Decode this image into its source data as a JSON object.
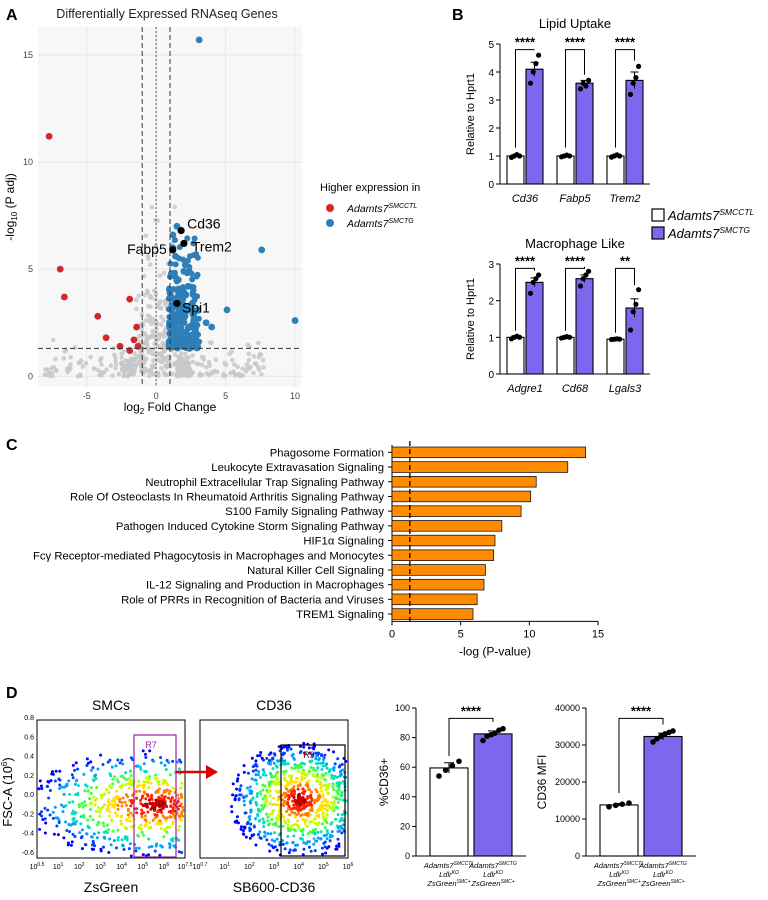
{
  "panels": {
    "a": "A",
    "b": "B",
    "c": "C",
    "d": "D"
  },
  "colors": {
    "red": "#d62728",
    "blue": "#2c7fb8",
    "grey": "#c8c8c8",
    "purple": "#7b68ee",
    "orange": "#ff8c00",
    "black": "#000000"
  },
  "volcano": {
    "title": "Differentially Expressed RNAseq Genes",
    "ylabel_pre": "-log",
    "ylabel_sub": "10",
    "ylabel_post": " (P adj)",
    "xlabel_pre": "log",
    "xlabel_sub": "2",
    "xlabel_post": " Fold Change",
    "legend_title": "Higher expression in",
    "legend_red": "Adamts7",
    "legend_red_sup": "SMCCTL",
    "legend_blue": "Adamts7",
    "legend_blue_sup": "SMCTG",
    "xticks": [
      -5,
      0,
      5,
      10
    ],
    "yticks": [
      0,
      5,
      10,
      15
    ],
    "xlim": [
      -8.5,
      10.5
    ],
    "ylim": [
      -0.5,
      16.3
    ],
    "labels": [
      {
        "name": "Cd36",
        "x": 1.8,
        "y": 6.8
      },
      {
        "name": "Trem2",
        "x": 2.0,
        "y": 6.2
      },
      {
        "name": "Fabp5",
        "x": 1.2,
        "y": 5.9
      },
      {
        "name": "Spi1",
        "x": 1.5,
        "y": 3.4
      }
    ]
  },
  "chart_data": [
    {
      "type": "scatter",
      "title": "Differentially Expressed RNAseq Genes",
      "xlabel": "log2 Fold Change",
      "ylabel": "-log10 (P adj)",
      "xlim": [
        -8.5,
        10.5
      ],
      "ylim": [
        -0.5,
        16.3
      ],
      "grid": true,
      "legend": "right",
      "series": [
        {
          "name": "Adamts7SMCCTL",
          "points": [
            [
              -7.7,
              11.2
            ],
            [
              -6.9,
              5.0
            ],
            [
              -6.6,
              3.7
            ],
            [
              -4.2,
              2.8
            ],
            [
              -3.6,
              1.8
            ],
            [
              -1.9,
              3.6
            ],
            [
              -1.4,
              2.3
            ],
            [
              -1.6,
              1.7
            ],
            [
              -1.3,
              1.4
            ],
            [
              -1.9,
              1.2
            ],
            [
              -2.6,
              1.4
            ]
          ]
        },
        {
          "name": "Adamts7SMCTG",
          "points": [
            [
              3.1,
              15.7
            ],
            [
              7.6,
              5.9
            ],
            [
              10.0,
              2.6
            ],
            [
              5.1,
              3.1
            ],
            [
              3.6,
              2.5
            ],
            [
              2.7,
              2.6
            ],
            [
              4.0,
              2.3
            ],
            [
              1.2,
              6.0
            ],
            [
              1.4,
              5.6
            ],
            [
              2.1,
              5.2
            ],
            [
              1.1,
              4.8
            ],
            [
              1.6,
              4.5
            ],
            [
              2.3,
              4.2
            ],
            [
              1.0,
              3.9
            ],
            [
              1.8,
              3.7
            ],
            [
              2.6,
              3.4
            ],
            [
              1.2,
              3.2
            ],
            [
              3.0,
              3.1
            ],
            [
              1.5,
              2.9
            ],
            [
              2.0,
              2.7
            ],
            [
              1.1,
              2.5
            ],
            [
              2.4,
              2.3
            ],
            [
              1.7,
              2.1
            ],
            [
              1.0,
              2.0
            ],
            [
              2.9,
              1.9
            ],
            [
              1.3,
              1.8
            ],
            [
              2.0,
              1.6
            ],
            [
              1.1,
              1.5
            ],
            [
              1.6,
              1.4
            ],
            [
              2.4,
              1.3
            ],
            [
              1.2,
              6.6
            ],
            [
              1.5,
              7.0
            ],
            [
              2.0,
              4.9
            ]
          ]
        }
      ]
    },
    {
      "type": "bar",
      "title": "Lipid Uptake",
      "ylabel": "Relative to Hprt1",
      "categories": [
        "Cd36",
        "Fabp5",
        "Trem2"
      ],
      "ylim": [
        0,
        5
      ],
      "yticks": [
        0,
        1,
        2,
        3,
        4,
        5
      ],
      "series": [
        {
          "name": "Adamts7SMCCTL",
          "values": [
            1.0,
            1.0,
            1.0
          ],
          "err": [
            0.05,
            0.04,
            0.05
          ],
          "points": [
            [
              0.95,
              1.0,
              1.05,
              1.0
            ],
            [
              0.97,
              1.0,
              1.03,
              1.0
            ],
            [
              0.96,
              1.0,
              1.04,
              1.0
            ]
          ]
        },
        {
          "name": "Adamts7SMCTG",
          "values": [
            4.1,
            3.6,
            3.7
          ],
          "err": [
            0.25,
            0.1,
            0.3
          ],
          "points": [
            [
              3.6,
              4.0,
              4.3,
              4.6
            ],
            [
              3.4,
              3.6,
              3.5,
              3.7
            ],
            [
              3.2,
              3.6,
              3.8,
              4.2
            ]
          ]
        }
      ],
      "significance": [
        "****",
        "****",
        "****"
      ]
    },
    {
      "type": "bar",
      "title": "Macrophage Like",
      "ylabel": "Relative to Hprt1",
      "categories": [
        "Adgre1",
        "Cd68",
        "Lgals3"
      ],
      "ylim": [
        0,
        3
      ],
      "yticks": [
        0,
        1,
        2,
        3
      ],
      "series": [
        {
          "name": "Adamts7SMCCTL",
          "values": [
            1.0,
            1.0,
            0.95
          ],
          "err": [
            0.04,
            0.03,
            0.02
          ],
          "points": [
            [
              0.96,
              1.0,
              1.03,
              1.0
            ],
            [
              0.98,
              1.0,
              1.02,
              1.0
            ],
            [
              0.94,
              0.95,
              0.96,
              0.95
            ]
          ]
        },
        {
          "name": "Adamts7SMCTG",
          "values": [
            2.5,
            2.6,
            1.8
          ],
          "err": [
            0.12,
            0.1,
            0.25
          ],
          "points": [
            [
              2.2,
              2.5,
              2.6,
              2.7
            ],
            [
              2.4,
              2.6,
              2.7,
              2.8
            ],
            [
              1.2,
              1.7,
              1.9,
              2.3
            ]
          ]
        }
      ],
      "significance": [
        "****",
        "****",
        "**"
      ]
    },
    {
      "type": "bar",
      "orientation": "horizontal",
      "xlabel": "-log (P-value)",
      "categories": [
        "Phagosome Formation",
        "Leukocyte Extravasation Signaling",
        "Neutrophil Extracellular Trap Signaling Pathway",
        "Role Of Osteoclasts In Rheumatoid Arthritis Signaling Pathway",
        "S100 Family Signaling Pathway",
        "Pathogen Induced Cytokine Storm Signaling Pathway",
        "HIF1α Signaling",
        "Fcγ Receptor-mediated Phagocytosis in Macrophages and Monocytes",
        "Natural Killer Cell Signaling",
        "IL-12 Signaling and Production in Macrophages",
        "Role of PRRs in Recognition of Bacteria and Viruses",
        "TREM1 Signaling"
      ],
      "values": [
        14.1,
        12.8,
        10.5,
        10.1,
        9.4,
        8.0,
        7.5,
        7.4,
        6.8,
        6.7,
        6.2,
        5.9
      ],
      "xlim": [
        0,
        15
      ],
      "xticks": [
        0,
        5,
        10,
        15
      ],
      "threshold": 1.3
    },
    {
      "type": "bar",
      "ylabel": "%CD36+",
      "categories": [
        "Adamts7SMCCTL LdlrKO ZsGreenSMC+",
        "Adamts7SMCTG LdlrKO ZsGreenSMC+"
      ],
      "values": [
        59.5,
        82.5
      ],
      "err": [
        3.5,
        2.0
      ],
      "points": [
        [
          54,
          58,
          61,
          64
        ],
        [
          78,
          81,
          82,
          83,
          85,
          86
        ]
      ],
      "ylim": [
        0,
        100
      ],
      "yticks": [
        0,
        20,
        40,
        60,
        80,
        100
      ],
      "significance": "****"
    },
    {
      "type": "bar",
      "ylabel": "CD36 MFI",
      "categories": [
        "Adamts7SMCCTL LdlrKO ZsGreenSMC+",
        "Adamts7SMCTG LdlrKO ZsGreenSMC+"
      ],
      "values": [
        13800,
        32300
      ],
      "err": [
        400,
        900
      ],
      "points": [
        [
          13300,
          13700,
          14000,
          14300
        ],
        [
          30800,
          31700,
          32400,
          33000,
          33400,
          33800
        ]
      ],
      "ylim": [
        0,
        40000
      ],
      "yticks": [
        0,
        10000,
        20000,
        30000,
        40000
      ],
      "significance": "****"
    }
  ],
  "bar_legend": {
    "ctl": "Adamts7",
    "ctl_sup": "SMCCTL",
    "tg": "Adamts7",
    "tg_sup": "SMCTG"
  },
  "flow": {
    "left_title": "SMCs",
    "right_title": "CD36",
    "left_gate": "R7",
    "right_gate": "R9",
    "left_xlabel": "ZsGreen",
    "right_xlabel": "SB600-CD36",
    "ylabel": "FSC-A (10",
    "ylabel_sup": "6",
    "ylabel_end": ")",
    "yticks": [
      "-0.6",
      "-0.4",
      "-0.2",
      "0.0",
      "0.2",
      "0.4",
      "0.6",
      "0.8"
    ],
    "left_xticks": [
      {
        "b": "10",
        "e": "0.5"
      },
      {
        "b": "10",
        "e": "1"
      },
      {
        "b": "10",
        "e": "2"
      },
      {
        "b": "10",
        "e": "3"
      },
      {
        "b": "10",
        "e": "4"
      },
      {
        "b": "10",
        "e": "5"
      },
      {
        "b": "10",
        "e": "6"
      },
      {
        "b": "10",
        "e": "7.5"
      }
    ],
    "right_xticks": [
      {
        "b": "10",
        "e": "0.7"
      },
      {
        "b": "10",
        "e": "1"
      },
      {
        "b": "10",
        "e": "2"
      },
      {
        "b": "10",
        "e": "3"
      },
      {
        "b": "10",
        "e": "4"
      },
      {
        "b": "10",
        "e": "5"
      },
      {
        "b": "10",
        "e": "6"
      }
    ]
  },
  "dlabels": [
    {
      "l1": "Adamts7",
      "s1": "SMCCTL",
      "l2": "Ldlr",
      "s2": "KO",
      "l3": "ZsGreen",
      "s3": "SMC+"
    },
    {
      "l1": "Adamts7",
      "s1": "SMCTG",
      "l2": "Ldlr",
      "s2": "KO",
      "l3": "ZsGreen",
      "s3": "SMC+"
    }
  ]
}
